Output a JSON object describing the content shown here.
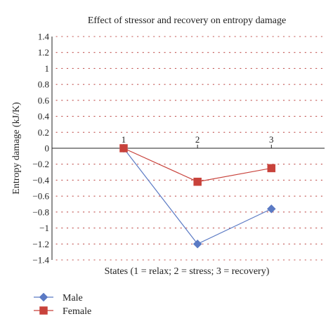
{
  "chart_data": {
    "type": "line",
    "title": "Effect of stressor and recovery on entropy damage",
    "xlabel": "States (1 = relax; 2 = stress; 3 = recovery)",
    "ylabel": "Entropy damage (kJ/K)",
    "x": [
      1,
      2,
      3
    ],
    "x_tick_labels": [
      "1",
      "2",
      "3"
    ],
    "ylim": [
      -1.4,
      1.4
    ],
    "y_ticks": [
      1.4,
      1.2,
      1,
      0.8,
      0.6,
      0.4,
      0.2,
      0,
      -0.2,
      -0.4,
      -0.6,
      -0.8,
      -1,
      -1.2,
      -1.4
    ],
    "y_tick_labels": [
      "1.4",
      "1.2",
      "1",
      "0.8",
      "0.6",
      "0.4",
      "0.2",
      "0",
      "−0.2",
      "−0.4",
      "−0.6",
      "−0.8",
      "−1",
      "−1.2",
      "−1.4"
    ],
    "grid": "horizontal dotted",
    "legend_position": "bottom-left",
    "series": [
      {
        "name": "Male",
        "values": [
          0,
          -1.2,
          -0.76
        ],
        "color": "#5b7ac4",
        "marker": "diamond"
      },
      {
        "name": "Female",
        "values": [
          0,
          -0.42,
          -0.25
        ],
        "color": "#c8423b",
        "marker": "square"
      }
    ]
  }
}
